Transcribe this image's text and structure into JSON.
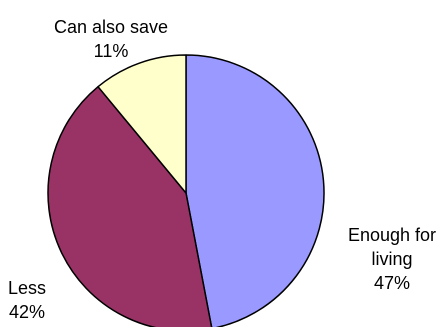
{
  "chart_data": {
    "type": "pie",
    "title": "",
    "slices": [
      {
        "category": "Enough for living",
        "label_lines": [
          "Enough for",
          "living"
        ],
        "value": 47,
        "value_label": "47%",
        "color": "#9999ff"
      },
      {
        "category": "Less",
        "label_lines": [
          "Less"
        ],
        "value": 42,
        "value_label": "42%",
        "color": "#993366"
      },
      {
        "category": "Can also save",
        "label_lines": [
          "Can also save"
        ],
        "value": 11,
        "value_label": "11%",
        "color": "#ffffcc"
      }
    ],
    "start_angle_deg": 0,
    "direction": "clockwise",
    "legend": "none"
  }
}
